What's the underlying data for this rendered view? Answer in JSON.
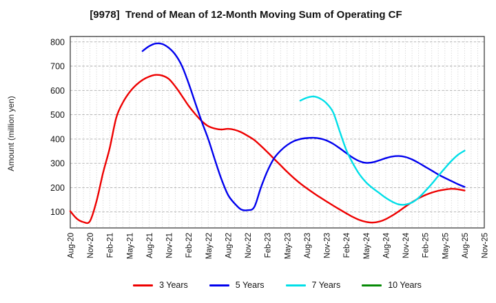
{
  "title": "[9978]  Trend of Mean of 12-Month Moving Sum of Operating CF",
  "chart_data": {
    "type": "line",
    "title": "[9978]  Trend of Mean of 12-Month Moving Sum of Operating CF",
    "xlabel": "",
    "ylabel": "Amount (million yen)",
    "grid": true,
    "legend_position": "bottom",
    "ylim": [
      34,
      822
    ],
    "y_ticks": [
      100,
      200,
      300,
      400,
      500,
      600,
      700,
      800
    ],
    "x_months_span": 63,
    "x_tick_interval_months": 3,
    "x_tick_labels": [
      "Aug-20",
      "Nov-20",
      "Feb-21",
      "May-21",
      "Aug-21",
      "Nov-21",
      "Feb-22",
      "May-22",
      "Aug-22",
      "Nov-22",
      "Feb-23",
      "May-23",
      "Aug-23",
      "Nov-23",
      "Feb-24",
      "May-24",
      "Aug-24",
      "Nov-24",
      "Feb-25",
      "May-25",
      "Aug-25",
      "Nov-25"
    ],
    "series": [
      {
        "name": "3 Years",
        "color": "#ee0000",
        "start_month_index": 0,
        "start_label": "Aug-20",
        "end_label": "Aug-25",
        "values": [
          103,
          72,
          58,
          62,
          145,
          262,
          362,
          488,
          550,
          592,
          622,
          643,
          657,
          664,
          661,
          647,
          616,
          577,
          537,
          503,
          474,
          453,
          443,
          439,
          442,
          438,
          428,
          413,
          396,
          372,
          346,
          319,
          292,
          265,
          240,
          217,
          197,
          178,
          160,
          143,
          126,
          110,
          94,
          79,
          67,
          59,
          56,
          60,
          70,
          85,
          103,
          122,
          140,
          156,
          169,
          179,
          187,
          192,
          195,
          193,
          188
        ]
      },
      {
        "name": "5 Years",
        "color": "#0000ee",
        "start_month_index": 11,
        "start_label": "Jul-21",
        "end_label": "Aug-25",
        "values": [
          762,
          782,
          793,
          791,
          775,
          747,
          700,
          630,
          550,
          472,
          400,
          315,
          235,
          170,
          135,
          110,
          107,
          120,
          200,
          268,
          320,
          352,
          375,
          391,
          400,
          404,
          405,
          402,
          394,
          380,
          362,
          342,
          323,
          309,
          302,
          304,
          312,
          321,
          328,
          330,
          326,
          316,
          302,
          286,
          270,
          254,
          240,
          227,
          214,
          203
        ]
      },
      {
        "name": "7 Years",
        "color": "#00dfe8",
        "start_month_index": 35,
        "start_label": "Jul-23",
        "end_label": "Aug-25",
        "values": [
          558,
          570,
          575,
          567,
          547,
          510,
          432,
          355,
          300,
          255,
          222,
          198,
          178,
          158,
          142,
          131,
          130,
          139,
          158,
          185,
          215,
          248,
          280,
          310,
          335,
          352
        ]
      },
      {
        "name": "10 Years",
        "color": "#068a06",
        "start_month_index": 0,
        "start_label": "",
        "end_label": "",
        "values": []
      }
    ],
    "style": {
      "grid_v_color": "#c6c6c6",
      "grid_h_color": "#aaaaaa",
      "frame_color": "#3c3c3c",
      "tick_label_color": "#111111"
    }
  }
}
